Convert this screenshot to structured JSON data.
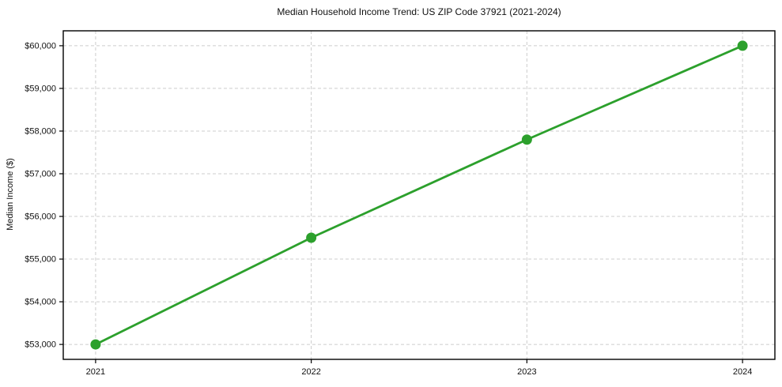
{
  "chart_data": {
    "type": "line",
    "title": "Median Household Income Trend: US ZIP Code 37921 (2021-2024)",
    "xlabel": "",
    "ylabel": "Median Income ($)",
    "x": [
      2021,
      2022,
      2023,
      2024
    ],
    "series": [
      {
        "name": "Median Income",
        "values": [
          53000,
          55500,
          57800,
          60000
        ]
      }
    ],
    "xtick_labels": [
      "2021",
      "2022",
      "2023",
      "2024"
    ],
    "yticks": [
      53000,
      54000,
      55000,
      56000,
      57000,
      58000,
      59000,
      60000
    ],
    "ytick_labels": [
      "$53,000",
      "$54,000",
      "$55,000",
      "$56,000",
      "$57,000",
      "$58,000",
      "$59,000",
      "$60,000"
    ],
    "xlim": [
      2020.85,
      2024.15
    ],
    "ylim": [
      52650,
      60350
    ],
    "grid": true,
    "line_color": "#2ca02c",
    "grid_color": "#cccccc",
    "axis_color": "#000000"
  }
}
